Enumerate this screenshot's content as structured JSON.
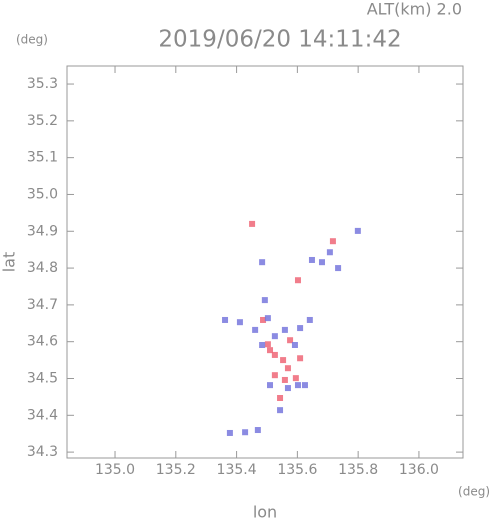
{
  "chart_data": {
    "type": "scatter",
    "title": "2019/06/20 14:11:42",
    "annotation": "ALT(km) 2.0",
    "y_unit": "(deg)",
    "x_unit": "(deg)",
    "xlabel": "lon",
    "ylabel": "lat",
    "xlim": [
      134.842,
      136.145
    ],
    "ylim": [
      34.284,
      35.349
    ],
    "xticks": [
      {
        "value": 135.0,
        "label": "135.0"
      },
      135.2,
      135.4,
      135.6,
      135.8,
      {
        "value": 136.0,
        "label": "136.0"
      }
    ],
    "yticks": [
      34.3,
      34.4,
      34.5,
      34.6,
      34.7,
      34.8,
      34.9,
      {
        "value": 35.0,
        "label": "35.0"
      },
      35.1,
      35.2,
      35.3
    ],
    "series": [
      {
        "color": "#ee6677",
        "x": [
          135.451,
          135.602,
          135.717,
          135.51,
          135.526,
          135.559,
          135.543,
          135.595,
          135.503,
          135.576,
          135.487,
          135.553,
          135.526,
          135.569,
          135.609
        ],
        "values": [
          34.92,
          34.767,
          34.873,
          34.577,
          34.564,
          34.496,
          34.447,
          34.501,
          34.593,
          34.604,
          34.659,
          34.55,
          34.509,
          34.528,
          34.555
        ]
      },
      {
        "color": "#7777dd",
        "x": [
          135.493,
          135.503,
          135.609,
          135.681,
          135.734,
          135.799,
          135.484,
          135.411,
          135.461,
          135.559,
          135.592,
          135.602,
          135.51,
          135.569,
          135.625,
          135.428,
          135.47,
          135.378,
          135.648,
          135.707,
          135.526,
          135.641,
          135.484,
          135.543,
          135.362
        ],
        "values": [
          34.713,
          34.664,
          34.637,
          34.816,
          34.8,
          34.901,
          34.816,
          34.653,
          34.632,
          34.632,
          34.591,
          34.482,
          34.482,
          34.474,
          34.482,
          34.354,
          34.36,
          34.352,
          34.822,
          34.843,
          34.615,
          34.659,
          34.591,
          34.414,
          34.659
        ]
      }
    ]
  }
}
